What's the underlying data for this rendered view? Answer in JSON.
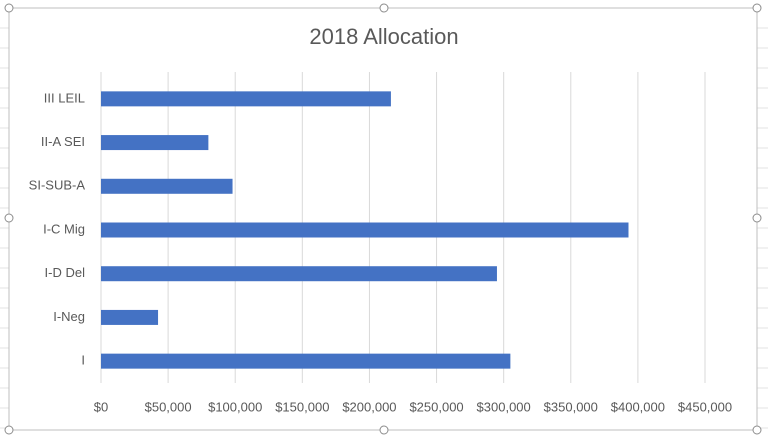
{
  "chart_data": {
    "type": "bar",
    "orientation": "horizontal",
    "title": "2018 Allocation",
    "categories": [
      "III LEIL",
      "II-A SEI",
      "SI-SUB-A",
      "I-C Mig",
      "I-D Del",
      "I-Neg",
      "I"
    ],
    "values": [
      216000,
      80000,
      98000,
      393000,
      295000,
      42500,
      305000
    ],
    "color": "#4472c4",
    "xlim": [
      0,
      450000
    ],
    "xticks": [
      {
        "value": 0,
        "label": "$0"
      },
      {
        "value": 50000,
        "label": "$50,000"
      },
      {
        "value": 100000,
        "label": "$100,000"
      },
      {
        "value": 150000,
        "label": "$150,000"
      },
      {
        "value": 200000,
        "label": "$200,000"
      },
      {
        "value": 250000,
        "label": "$250,000"
      },
      {
        "value": 300000,
        "label": "$300,000"
      },
      {
        "value": 350000,
        "label": "$350,000"
      },
      {
        "value": 400000,
        "label": "$400,000"
      },
      {
        "value": 450000,
        "label": "$450,000"
      }
    ],
    "grid": true
  }
}
